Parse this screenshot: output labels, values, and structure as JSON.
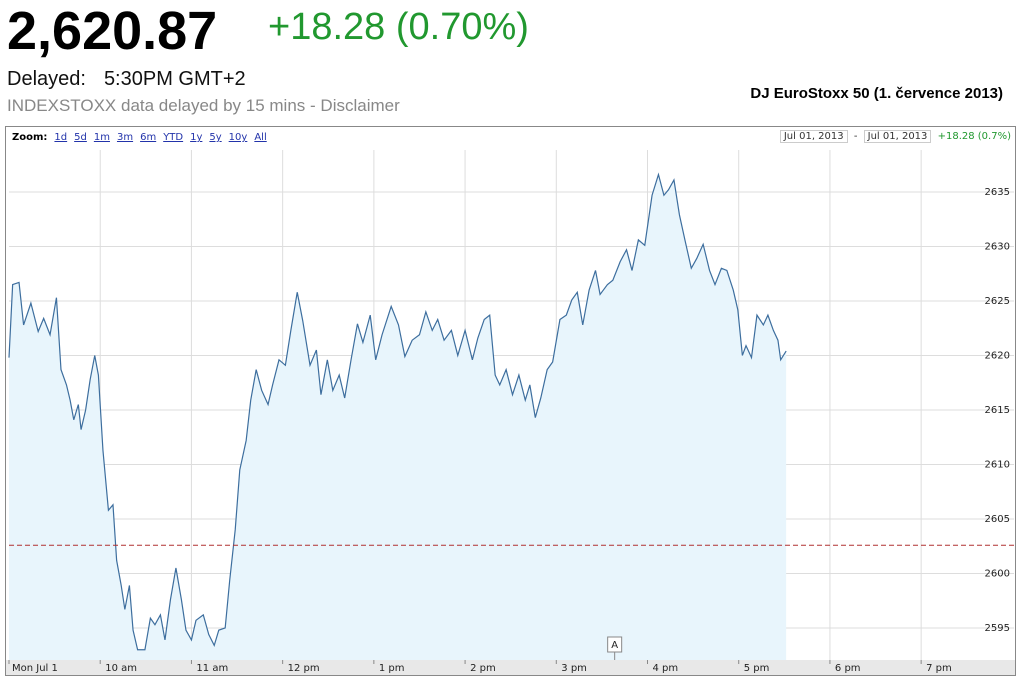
{
  "header": {
    "price": "2,620.87",
    "change": "+18.28 (0.70%)",
    "delayed_label": "Delayed:",
    "delayed_time": "5:30PM GMT+2",
    "source_note": "INDEXSTOXX data delayed by 15 mins",
    "source_sep": "-",
    "disclaimer": "Disclaimer",
    "chart_title": "DJ EuroStoxx 50 (1. července 2013)"
  },
  "zoom": {
    "label": "Zoom:",
    "options": [
      "1d",
      "5d",
      "1m",
      "3m",
      "6m",
      "YTD",
      "1y",
      "5y",
      "10y",
      "All"
    ],
    "date_from": "Jul 01, 2013",
    "sep": "-",
    "date_to": "Jul 01, 2013",
    "range_change": "+18.28 (0.7%)"
  },
  "chart_data": {
    "type": "line",
    "color": "#3d6e9e",
    "fill": "#e8f5fc",
    "grid": true,
    "x": [
      9.0,
      9.04,
      9.11,
      9.16,
      9.24,
      9.32,
      9.38,
      9.45,
      9.52,
      9.57,
      9.63,
      9.67,
      9.71,
      9.76,
      9.79,
      9.84,
      9.89,
      9.94,
      9.98,
      10.03,
      10.09,
      10.14,
      10.18,
      10.23,
      10.27,
      10.32,
      10.36,
      10.41,
      10.49,
      10.55,
      10.6,
      10.66,
      10.71,
      10.77,
      10.83,
      10.89,
      10.94,
      11.0,
      11.05,
      11.13,
      11.19,
      11.25,
      11.3,
      11.37,
      11.42,
      11.48,
      11.53,
      11.6,
      11.65,
      11.71,
      11.77,
      11.84,
      11.89,
      11.96,
      12.03,
      12.09,
      12.16,
      12.22,
      12.3,
      12.37,
      12.42,
      12.49,
      12.55,
      12.62,
      12.68,
      12.75,
      12.82,
      12.88,
      12.96,
      13.02,
      13.09,
      13.19,
      13.27,
      13.34,
      13.42,
      13.5,
      13.57,
      13.64,
      13.7,
      13.77,
      13.85,
      13.92,
      14.0,
      14.08,
      14.14,
      14.21,
      14.27,
      14.33,
      14.38,
      14.45,
      14.52,
      14.59,
      14.66,
      14.71,
      14.77,
      14.83,
      14.9,
      14.96,
      15.04,
      15.11,
      15.17,
      15.23,
      15.29,
      15.36,
      15.43,
      15.48,
      15.56,
      15.62,
      15.7,
      15.77,
      15.83,
      15.9,
      15.97,
      16.05,
      16.12,
      16.18,
      16.23,
      16.29,
      16.35,
      16.41,
      16.48,
      16.54,
      16.61,
      16.68,
      16.74,
      16.81,
      16.87,
      16.94,
      16.99,
      17.04,
      17.08,
      17.14,
      17.2,
      17.27,
      17.32,
      17.38,
      17.43,
      17.46,
      17.52
    ],
    "values": [
      2619.8,
      2626.5,
      2626.7,
      2622.8,
      2624.8,
      2622.2,
      2623.4,
      2621.9,
      2625.3,
      2618.7,
      2617.3,
      2615.9,
      2614.1,
      2615.5,
      2613.2,
      2615.0,
      2617.8,
      2620.0,
      2618.2,
      2611.3,
      2605.8,
      2606.3,
      2601.2,
      2598.9,
      2596.7,
      2598.9,
      2594.8,
      2593.0,
      2593.0,
      2595.9,
      2595.3,
      2596.2,
      2593.9,
      2597.6,
      2600.5,
      2597.6,
      2594.8,
      2593.9,
      2595.7,
      2596.2,
      2594.4,
      2593.4,
      2594.8,
      2595.0,
      2599.4,
      2604.0,
      2609.5,
      2612.2,
      2615.9,
      2618.7,
      2616.8,
      2615.5,
      2617.3,
      2619.6,
      2619.1,
      2622.3,
      2625.8,
      2623.2,
      2619.1,
      2620.5,
      2616.4,
      2619.6,
      2616.8,
      2618.2,
      2616.1,
      2619.6,
      2622.9,
      2621.2,
      2623.7,
      2619.6,
      2621.9,
      2624.5,
      2622.8,
      2619.9,
      2621.4,
      2621.9,
      2624.0,
      2622.3,
      2623.3,
      2621.4,
      2622.3,
      2620.0,
      2622.3,
      2619.6,
      2621.6,
      2623.3,
      2623.7,
      2618.2,
      2617.3,
      2618.7,
      2616.4,
      2618.2,
      2615.9,
      2617.3,
      2614.3,
      2616.1,
      2618.7,
      2619.4,
      2623.3,
      2623.7,
      2625.1,
      2625.8,
      2622.8,
      2626.0,
      2627.8,
      2625.6,
      2626.5,
      2626.9,
      2628.6,
      2629.7,
      2627.8,
      2630.6,
      2630.1,
      2634.7,
      2636.6,
      2634.7,
      2635.2,
      2636.1,
      2632.9,
      2630.6,
      2628.0,
      2628.9,
      2630.2,
      2627.8,
      2626.5,
      2628.0,
      2627.8,
      2626.0,
      2624.2,
      2620.0,
      2620.9,
      2619.8,
      2623.7,
      2622.8,
      2623.7,
      2622.3,
      2621.4,
      2619.6,
      2620.4
    ],
    "xlim": [
      9,
      19.7
    ],
    "xticks": [
      {
        "value": 9,
        "label": "Mon Jul 1"
      },
      {
        "value": 10,
        "label": "10 am"
      },
      {
        "value": 11,
        "label": "11 am"
      },
      {
        "value": 12,
        "label": "12 pm"
      },
      {
        "value": 13,
        "label": "1 pm"
      },
      {
        "value": 14,
        "label": "2 pm"
      },
      {
        "value": 15,
        "label": "3 pm"
      },
      {
        "value": 16,
        "label": "4 pm"
      },
      {
        "value": 17,
        "label": "5 pm"
      },
      {
        "value": 18,
        "label": "6 pm"
      },
      {
        "value": 19,
        "label": "7 pm"
      }
    ],
    "ylim": [
      2592.06,
      2638.85
    ],
    "yticks": [
      2595,
      2600,
      2605,
      2610,
      2615,
      2620,
      2625,
      2630,
      2635
    ],
    "reference_line": 2602.59,
    "reference_color": "#b03030",
    "flags": [
      {
        "label": "A",
        "x": 15.64
      }
    ]
  }
}
